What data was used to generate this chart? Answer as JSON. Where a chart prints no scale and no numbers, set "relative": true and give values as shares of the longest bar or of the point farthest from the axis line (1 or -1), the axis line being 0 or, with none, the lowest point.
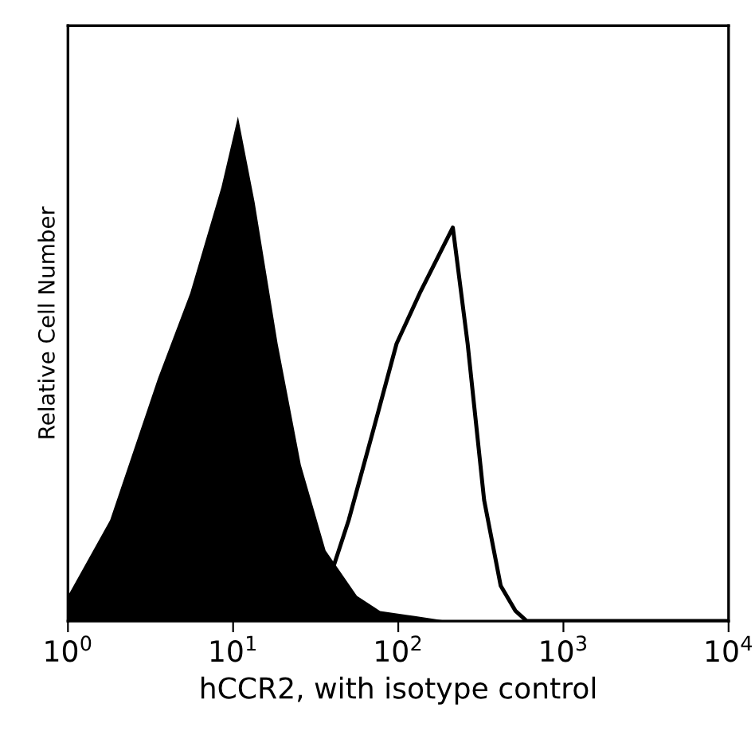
{
  "chart_data": {
    "type": "area",
    "relative": true,
    "xlabel": "hCCR2, with isotype control",
    "ylabel": "Relative Cell Number",
    "log": "x",
    "xlim": [
      1,
      10000
    ],
    "xticks": [
      {
        "value": 1,
        "label": "10$^{0}$"
      },
      {
        "value": 10,
        "label": "10$^{1}$"
      },
      {
        "value": 100,
        "label": "10$^{2}$"
      },
      {
        "value": 1000,
        "label": "10$^{3}$"
      },
      {
        "value": 10000,
        "label": "10$^{4}$"
      }
    ],
    "grid": false,
    "legend": false,
    "series": [
      {
        "color": "#000000",
        "x": [
          1,
          1.8,
          3.5,
          5.5,
          8.5,
          10.7,
          13.5,
          18.6,
          25.7,
          36.3,
          56.2,
          77.6,
          126,
          200,
          10000
        ],
        "values": [
          0.05,
          0.2,
          0.48,
          0.65,
          0.86,
          1.0,
          0.83,
          0.55,
          0.31,
          0.14,
          0.05,
          0.02,
          0.01,
          0,
          0
        ]
      },
      {
        "type": "line",
        "color": "#000000",
        "x": [
          31.6,
          50.1,
          70.8,
          97.7,
          135,
          214,
          263,
          331,
          417,
          513,
          600,
          10000
        ],
        "values": [
          0,
          0.2,
          0.38,
          0.55,
          0.65,
          0.78,
          0.55,
          0.24,
          0.07,
          0.02,
          0,
          0
        ]
      }
    ]
  }
}
